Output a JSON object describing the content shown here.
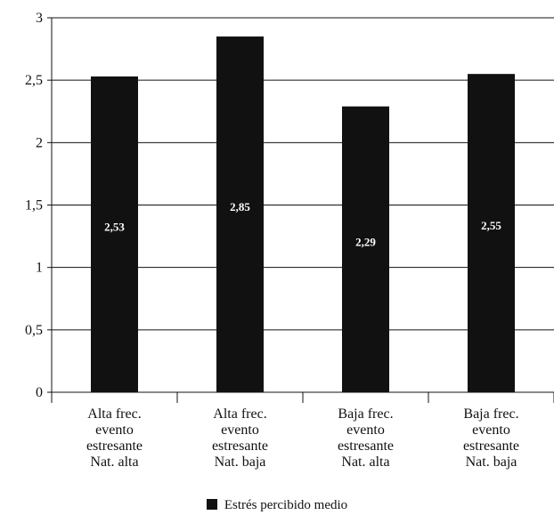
{
  "chart_data": {
    "type": "bar",
    "categories": [
      [
        "Alta frec.",
        "evento",
        "estresante",
        "Nat. alta"
      ],
      [
        "Alta frec.",
        "evento",
        "estresante",
        "Nat. baja"
      ],
      [
        "Baja frec.",
        "evento",
        "estresante",
        "Nat. alta"
      ],
      [
        "Baja frec.",
        "evento",
        "estresante",
        "Nat. baja"
      ]
    ],
    "series": [
      {
        "name": "Estrés percibido medio",
        "values": [
          2.53,
          2.85,
          2.29,
          2.55
        ],
        "labels": [
          "2,53",
          "2,85",
          "2,29",
          "2,55"
        ],
        "color": "#111111"
      }
    ],
    "ylim": [
      0,
      3
    ],
    "yticks": [
      0,
      0.5,
      1,
      1.5,
      2,
      2.5,
      3
    ],
    "ytick_labels": [
      "0",
      "0,5",
      "1",
      "1,5",
      "2",
      "2,5",
      "3"
    ],
    "grid": "horizontal",
    "legend_position": "bottom-center",
    "title": "",
    "xlabel": "",
    "ylabel": ""
  }
}
